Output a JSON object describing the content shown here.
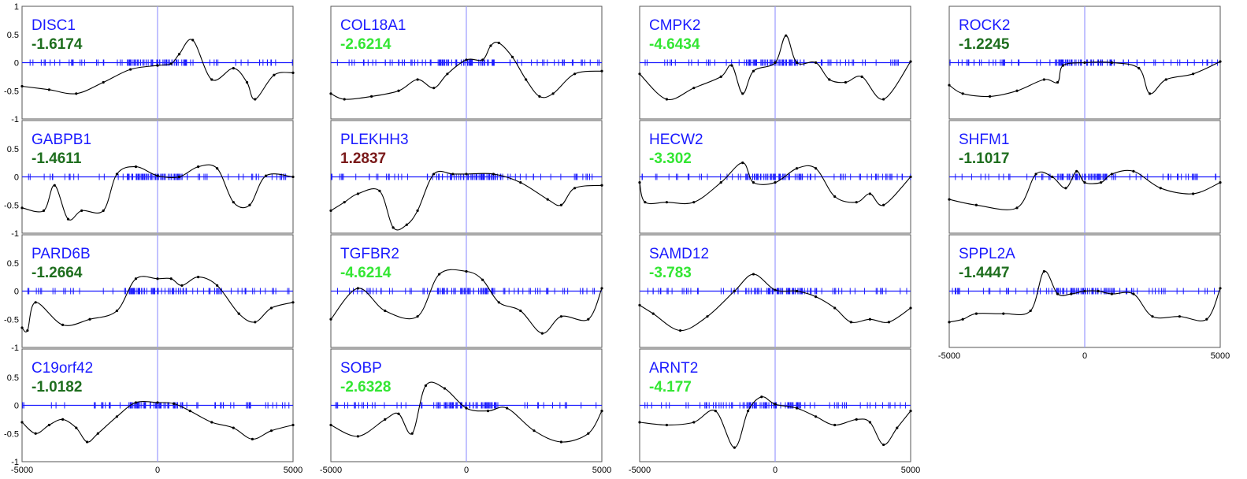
{
  "colors": {
    "gene_label": "#1a1aff",
    "score_dark_green": "#1e6e1e",
    "score_light_green": "#33e633",
    "score_dark_red": "#7a1a1a",
    "zero_line": "#1a1aff",
    "center_line": "#9a9aff",
    "curve": "#000000",
    "frame": "#555555"
  },
  "chart_data": {
    "type": "line",
    "layout": "grid of panels, 4 columns",
    "xlim": [
      -5000,
      5000
    ],
    "ylim": [
      -1,
      1
    ],
    "y_ticks": [
      "1",
      "0.5",
      "0",
      "-0.5",
      "-1"
    ],
    "x_ticks": [
      "-5000",
      "0",
      "5000"
    ],
    "panels": [
      {
        "gene": "DISC1",
        "score": "-1.6174",
        "score_color": "dark_green",
        "x": [
          -5000,
          -4000,
          -3000,
          -2000,
          -1000,
          0,
          500,
          800,
          1300,
          2000,
          2800,
          3300,
          3600,
          4300,
          5000
        ],
        "y": [
          -0.42,
          -0.48,
          -0.55,
          -0.35,
          -0.12,
          -0.05,
          -0.02,
          0.15,
          0.4,
          -0.3,
          -0.1,
          -0.35,
          -0.65,
          -0.22,
          -0.18
        ]
      },
      {
        "gene": "GABPB1",
        "score": "-1.4611",
        "score_color": "dark_green",
        "x": [
          -5000,
          -4200,
          -3800,
          -3300,
          -2800,
          -2000,
          -1500,
          -800,
          0,
          800,
          1500,
          2200,
          2800,
          3400,
          4000,
          5000
        ],
        "y": [
          -0.55,
          -0.6,
          -0.15,
          -0.75,
          -0.6,
          -0.6,
          0.05,
          0.18,
          0.02,
          0.0,
          0.18,
          0.15,
          -0.45,
          -0.5,
          0.02,
          0.0
        ]
      },
      {
        "gene": "PARD6B",
        "score": "-1.2664",
        "score_color": "dark_green",
        "x": [
          -5000,
          -4800,
          -4500,
          -3500,
          -2500,
          -1500,
          -800,
          0,
          500,
          900,
          1500,
          2200,
          3000,
          3600,
          4200,
          5000
        ],
        "y": [
          -0.65,
          -0.7,
          -0.2,
          -0.6,
          -0.5,
          -0.35,
          0.22,
          0.22,
          0.22,
          0.1,
          0.25,
          0.1,
          -0.4,
          -0.55,
          -0.3,
          -0.2
        ]
      },
      {
        "gene": "C19orf42",
        "score": "-1.0182",
        "score_color": "dark_green",
        "x": [
          -5000,
          -4500,
          -4000,
          -3500,
          -3000,
          -2600,
          -2200,
          -1500,
          -800,
          0,
          600,
          1200,
          2000,
          2800,
          3500,
          4200,
          5000
        ],
        "y": [
          -0.3,
          -0.5,
          -0.35,
          -0.25,
          -0.4,
          -0.65,
          -0.5,
          -0.2,
          0.05,
          0.05,
          0.03,
          -0.1,
          -0.3,
          -0.4,
          -0.6,
          -0.45,
          -0.35
        ]
      },
      {
        "gene": "COL18A1",
        "score": "-2.6214",
        "score_color": "light_green",
        "x": [
          -5000,
          -4500,
          -3500,
          -2500,
          -1800,
          -1200,
          -700,
          0,
          600,
          900,
          1200,
          1700,
          2200,
          2700,
          3200,
          4000,
          5000
        ],
        "y": [
          -0.55,
          -0.65,
          -0.6,
          -0.5,
          -0.3,
          -0.45,
          -0.2,
          0.05,
          0.05,
          0.3,
          0.35,
          0.1,
          -0.3,
          -0.6,
          -0.55,
          -0.2,
          -0.15
        ]
      },
      {
        "gene": "PLEKHH3",
        "score": "1.2837",
        "score_color": "dark_red",
        "x": [
          -5000,
          -4500,
          -4000,
          -3200,
          -2700,
          -2200,
          -1800,
          -1200,
          -500,
          0,
          1000,
          2000,
          3000,
          3500,
          4000,
          5000
        ],
        "y": [
          -0.6,
          -0.45,
          -0.3,
          -0.25,
          -0.9,
          -0.85,
          -0.6,
          0.05,
          0.05,
          0.05,
          0.05,
          -0.1,
          -0.4,
          -0.5,
          -0.2,
          -0.15
        ]
      },
      {
        "gene": "TGFBR2",
        "score": "-4.6214",
        "score_color": "light_green",
        "x": [
          -5000,
          -4000,
          -3000,
          -1800,
          -1000,
          0,
          600,
          1200,
          2000,
          2800,
          3500,
          4500,
          5000
        ],
        "y": [
          -0.5,
          0.05,
          -0.35,
          -0.45,
          0.3,
          0.35,
          0.2,
          -0.2,
          -0.35,
          -0.75,
          -0.45,
          -0.5,
          0.05
        ]
      },
      {
        "gene": "SOBP",
        "score": "-2.6328",
        "score_color": "light_green",
        "x": [
          -5000,
          -4000,
          -3000,
          -2500,
          -2000,
          -1500,
          -800,
          0,
          800,
          1500,
          2500,
          3500,
          4500,
          5000
        ],
        "y": [
          -0.35,
          -0.55,
          -0.25,
          -0.15,
          -0.5,
          0.35,
          0.3,
          -0.05,
          -0.1,
          -0.05,
          -0.45,
          -0.65,
          -0.5,
          -0.1
        ]
      },
      {
        "gene": "CMPK2",
        "score": "-4.6434",
        "score_color": "light_green",
        "x": [
          -5000,
          -4000,
          -3000,
          -2000,
          -1600,
          -1200,
          -800,
          0,
          400,
          800,
          1500,
          2000,
          2600,
          3200,
          4000,
          5000
        ],
        "y": [
          -0.2,
          -0.65,
          -0.45,
          -0.25,
          -0.05,
          -0.55,
          -0.15,
          0.0,
          0.48,
          0.0,
          0.0,
          -0.3,
          -0.35,
          -0.25,
          -0.65,
          0.02
        ]
      },
      {
        "gene": "HECW2",
        "score": "-3.302",
        "score_color": "light_green",
        "x": [
          -5000,
          -4800,
          -4000,
          -3000,
          -2000,
          -1200,
          -800,
          0,
          800,
          1500,
          2200,
          3000,
          3500,
          4000,
          5000
        ],
        "y": [
          -0.1,
          -0.45,
          -0.45,
          -0.45,
          -0.1,
          0.25,
          -0.1,
          -0.1,
          0.15,
          0.15,
          -0.35,
          -0.45,
          -0.3,
          -0.5,
          0.0
        ]
      },
      {
        "gene": "SAMD12",
        "score": "-3.783",
        "score_color": "light_green",
        "x": [
          -5000,
          -4500,
          -3500,
          -2500,
          -1500,
          -800,
          0,
          800,
          1500,
          2200,
          2800,
          3500,
          4200,
          5000
        ],
        "y": [
          -0.25,
          -0.4,
          -0.7,
          -0.45,
          0.0,
          0.3,
          0.02,
          0.0,
          -0.1,
          -0.3,
          -0.55,
          -0.5,
          -0.55,
          -0.3
        ]
      },
      {
        "gene": "ARNT2",
        "score": "-4.177",
        "score_color": "light_green",
        "x": [
          -5000,
          -4000,
          -3000,
          -2200,
          -1500,
          -1000,
          -500,
          0,
          800,
          1500,
          2200,
          3000,
          3500,
          4000,
          4500,
          5000
        ],
        "y": [
          -0.3,
          -0.35,
          -0.3,
          -0.1,
          -0.75,
          -0.1,
          0.15,
          0.02,
          -0.05,
          -0.2,
          -0.35,
          -0.25,
          -0.3,
          -0.7,
          -0.4,
          -0.1
        ]
      },
      {
        "gene": "ROCK2",
        "score": "-1.2245",
        "score_color": "dark_green",
        "x": [
          -5000,
          -4500,
          -3500,
          -2500,
          -1500,
          -1000,
          -800,
          0,
          1000,
          2000,
          2400,
          3000,
          4000,
          5000
        ],
        "y": [
          -0.4,
          -0.55,
          -0.6,
          -0.5,
          -0.3,
          -0.35,
          -0.05,
          0.0,
          0.0,
          -0.1,
          -0.55,
          -0.3,
          -0.2,
          0.02
        ]
      },
      {
        "gene": "SHFM1",
        "score": "-1.1017",
        "score_color": "dark_green",
        "x": [
          -5000,
          -4000,
          -2500,
          -1800,
          -1200,
          -700,
          -300,
          0,
          600,
          1000,
          1800,
          2800,
          4000,
          5000
        ],
        "y": [
          -0.4,
          -0.5,
          -0.55,
          0.05,
          0.0,
          -0.2,
          0.1,
          -0.1,
          -0.1,
          0.05,
          0.1,
          -0.2,
          -0.3,
          -0.1
        ]
      },
      {
        "gene": "SPPL2A",
        "score": "-1.4447",
        "score_color": "dark_green",
        "x": [
          -5000,
          -4500,
          -4000,
          -3000,
          -2000,
          -1500,
          -1000,
          -500,
          0,
          500,
          1000,
          1800,
          2500,
          3500,
          4500,
          5000
        ],
        "y": [
          -0.55,
          -0.5,
          -0.4,
          -0.4,
          -0.35,
          0.35,
          -0.05,
          -0.05,
          0.0,
          0.0,
          -0.05,
          -0.05,
          -0.45,
          -0.45,
          -0.5,
          0.05
        ]
      }
    ]
  }
}
